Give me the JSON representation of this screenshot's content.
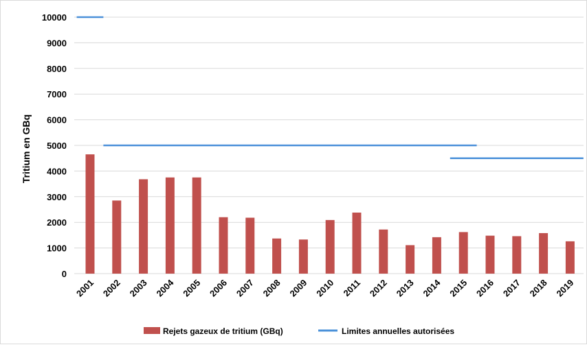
{
  "chart_data": {
    "type": "bar",
    "title": "",
    "xlabel": "",
    "ylabel": "Tritium en GBq",
    "ylim": [
      0,
      10000
    ],
    "yticks": [
      0,
      1000,
      2000,
      3000,
      4000,
      5000,
      6000,
      7000,
      8000,
      9000,
      10000
    ],
    "grid": "horizontal",
    "legend_position": "bottom",
    "categories": [
      "2001",
      "2002",
      "2003",
      "2004",
      "2005",
      "2006",
      "2007",
      "2008",
      "2009",
      "2010",
      "2011",
      "2012",
      "2013",
      "2014",
      "2015",
      "2016",
      "2017",
      "2018",
      "2019"
    ],
    "series": [
      {
        "name": "Rejets gazeux de tritium  (GBq)",
        "type": "bar",
        "color": "#c0504d",
        "values": [
          4650,
          2850,
          3680,
          3750,
          3750,
          2200,
          2180,
          1370,
          1330,
          2090,
          2380,
          1720,
          1110,
          1420,
          1620,
          1480,
          1460,
          1580,
          1260
        ]
      },
      {
        "name": "Limites annuelles autorisées",
        "type": "line",
        "color": "#4a90d9",
        "values": [
          10000,
          5000,
          5000,
          5000,
          5000,
          5000,
          5000,
          5000,
          5000,
          5000,
          5000,
          5000,
          5000,
          5000,
          4500,
          4500,
          4500,
          4500,
          4500
        ],
        "segments": [
          [
            0,
            0
          ],
          [
            1,
            14
          ],
          [
            14,
            18
          ]
        ]
      }
    ]
  }
}
